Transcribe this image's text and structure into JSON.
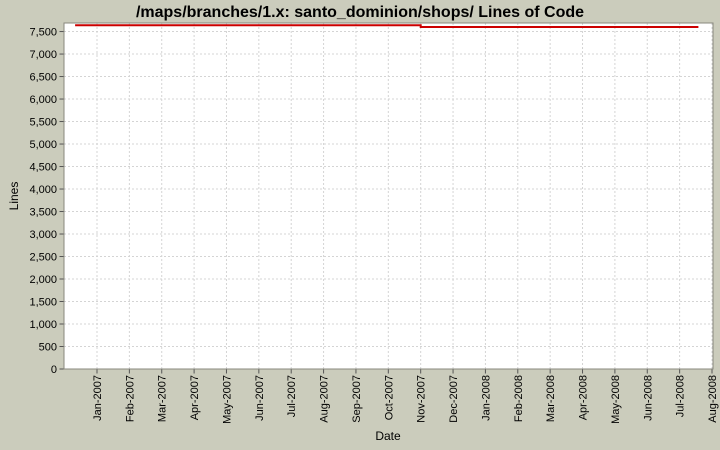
{
  "colors": {
    "background": "#cbccbc",
    "plot_background": "#ffffff",
    "plot_border": "#88887e",
    "grid": "#d4d4d4",
    "tick": "#555555",
    "series_red": "#cc0000",
    "text": "#000000"
  },
  "chart_data": {
    "type": "line",
    "title": "/maps/branches/1.x: santo_dominion/shops/ Lines of Code",
    "xlabel": "Date",
    "ylabel": "Lines",
    "grid": true,
    "legend_position": "none",
    "ylim": [
      0,
      7690
    ],
    "y_ticks": [
      {
        "value": 0,
        "label": "0"
      },
      {
        "value": 500,
        "label": "500"
      },
      {
        "value": 1000,
        "label": "1,000"
      },
      {
        "value": 1500,
        "label": "1,500"
      },
      {
        "value": 2000,
        "label": "2,000"
      },
      {
        "value": 2500,
        "label": "2,500"
      },
      {
        "value": 3000,
        "label": "3,000"
      },
      {
        "value": 3500,
        "label": "3,500"
      },
      {
        "value": 4000,
        "label": "4,000"
      },
      {
        "value": 4500,
        "label": "4,500"
      },
      {
        "value": 5000,
        "label": "5,000"
      },
      {
        "value": 5500,
        "label": "5,500"
      },
      {
        "value": 6000,
        "label": "6,000"
      },
      {
        "value": 6500,
        "label": "6,500"
      },
      {
        "value": 7000,
        "label": "7,000"
      },
      {
        "value": 7500,
        "label": "7,500"
      }
    ],
    "x_tick_labels": [
      "Jan-2007",
      "Feb-2007",
      "Mar-2007",
      "Apr-2007",
      "May-2007",
      "Jun-2007",
      "Jul-2007",
      "Aug-2007",
      "Sep-2007",
      "Oct-2007",
      "Nov-2007",
      "Dec-2007",
      "Jan-2008",
      "Feb-2008",
      "Mar-2008",
      "Apr-2008",
      "May-2008",
      "Jun-2008",
      "Jul-2008",
      "Aug-2008"
    ],
    "series": [
      {
        "name": "Lines of Code",
        "color": "#cc0000",
        "points": [
          {
            "date": "2006-12-11",
            "value": 7640
          },
          {
            "date": "2007-11-01",
            "value": 7640
          },
          {
            "date": "2007-11-01",
            "value": 7600
          },
          {
            "date": "2008-07-19",
            "value": 7600
          }
        ]
      }
    ]
  }
}
